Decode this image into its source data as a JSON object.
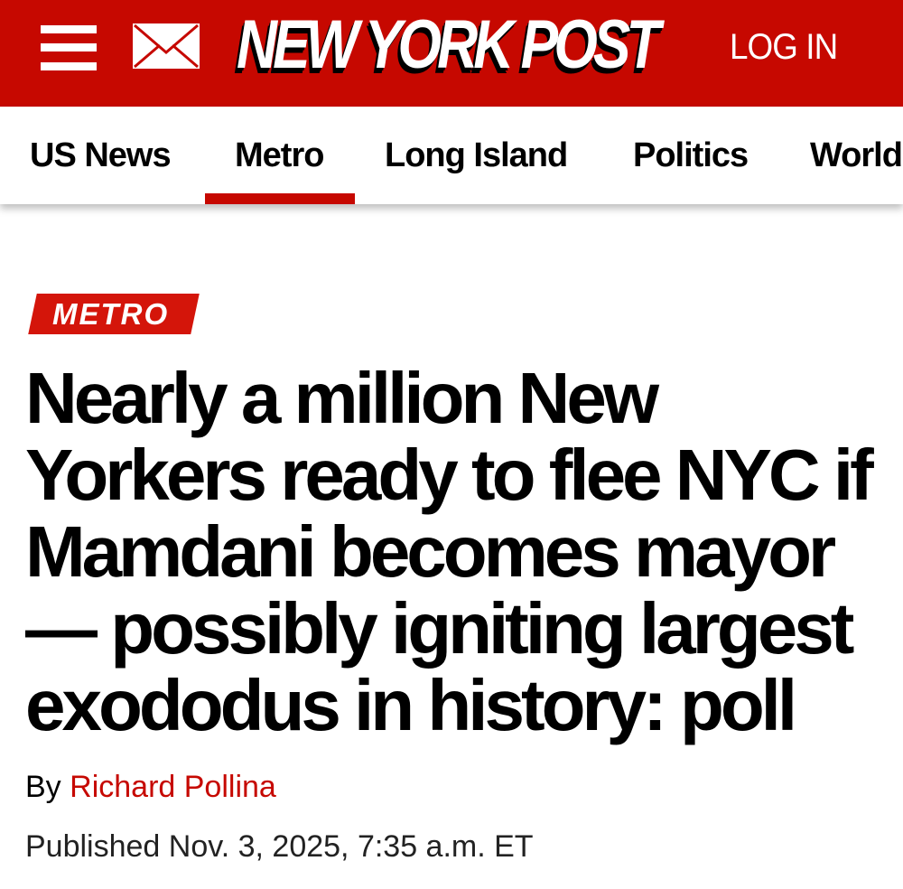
{
  "header": {
    "logo": "NEW YORK POST",
    "login_label": "LOG IN",
    "icons": [
      "menu-icon",
      "mail-icon"
    ],
    "brand_color": "#c60800"
  },
  "nav": {
    "tabs": [
      {
        "label": "US News"
      },
      {
        "label": "Metro",
        "active": true
      },
      {
        "label": "Long Island"
      },
      {
        "label": "Politics"
      },
      {
        "label": "World"
      }
    ]
  },
  "article": {
    "section": "METRO",
    "headline": "Nearly a million New Yorkers ready to flee NYC if Mamdani becomes mayor — possibly igniting largest exododus in history: poll",
    "byline_prefix": "By",
    "author": "Richard Pollina",
    "published": "Published Nov. 3, 2025, 7:35 a.m. ET"
  }
}
